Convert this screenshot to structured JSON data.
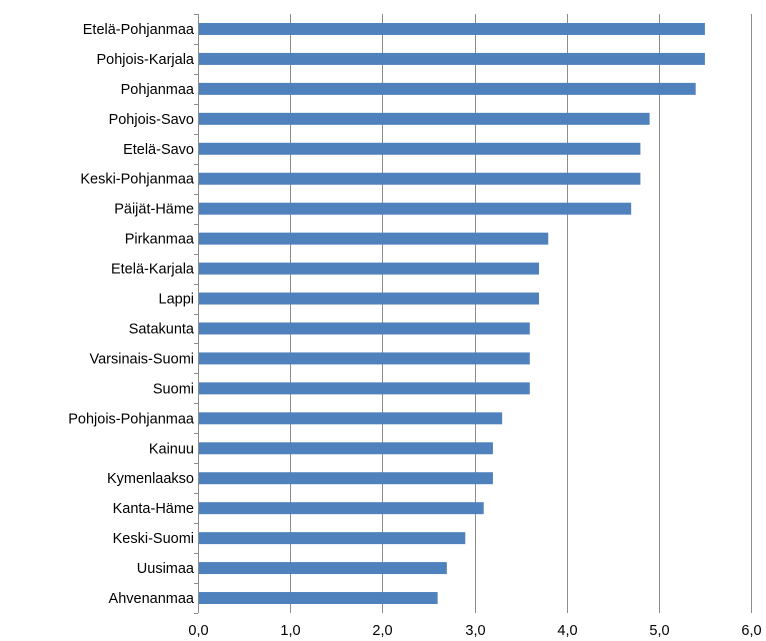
{
  "chart_data": {
    "type": "bar",
    "orientation": "horizontal",
    "title": "",
    "xlabel": "",
    "ylabel": "",
    "xlim": [
      0,
      6
    ],
    "xticks": [
      "0,0",
      "1,0",
      "2,0",
      "3,0",
      "4,0",
      "5,0",
      "6,0"
    ],
    "grid": "vertical",
    "legend": "none",
    "bar_color": "#4f81bd",
    "categories": [
      "Etelä-Pohjanmaa",
      "Pohjois-Karjala",
      "Pohjanmaa",
      "Pohjois-Savo",
      "Etelä-Savo",
      "Keski-Pohjanmaa",
      "Päijät-Häme",
      "Pirkanmaa",
      "Etelä-Karjala",
      "Lappi",
      "Satakunta",
      "Varsinais-Suomi",
      "Suomi",
      "Pohjois-Pohjanmaa",
      "Kainuu",
      "Kymenlaakso",
      "Kanta-Häme",
      "Keski-Suomi",
      "Uusimaa",
      "Ahvenanmaa"
    ],
    "values": [
      5.5,
      5.5,
      5.4,
      4.9,
      4.8,
      4.8,
      4.7,
      3.8,
      3.7,
      3.7,
      3.6,
      3.6,
      3.6,
      3.3,
      3.2,
      3.2,
      3.1,
      2.9,
      2.7,
      2.6
    ]
  }
}
